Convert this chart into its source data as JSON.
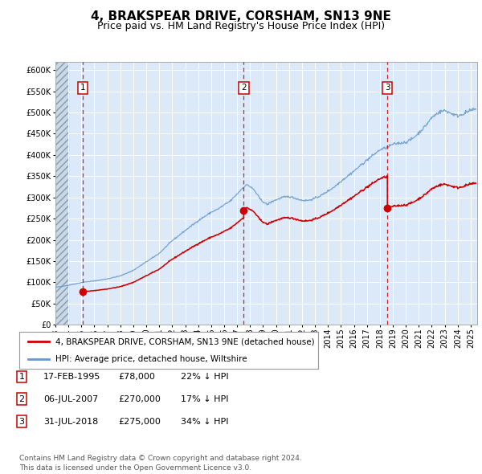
{
  "title": "4, BRAKSPEAR DRIVE, CORSHAM, SN13 9NE",
  "subtitle": "Price paid vs. HM Land Registry's House Price Index (HPI)",
  "legend_label_red": "4, BRAKSPEAR DRIVE, CORSHAM, SN13 9NE (detached house)",
  "legend_label_blue": "HPI: Average price, detached house, Wiltshire",
  "footer_line1": "Contains HM Land Registry data © Crown copyright and database right 2024.",
  "footer_line2": "This data is licensed under the Open Government Licence v3.0.",
  "transactions": [
    {
      "num": 1,
      "date": "17-FEB-1995",
      "price": 78000,
      "hpi_diff": "22% ↓ HPI"
    },
    {
      "num": 2,
      "date": "06-JUL-2007",
      "price": 270000,
      "hpi_diff": "17% ↓ HPI"
    },
    {
      "num": 3,
      "date": "31-JUL-2018",
      "price": 275000,
      "hpi_diff": "34% ↓ HPI"
    }
  ],
  "transaction_dates_decimal": [
    1995.12,
    2007.51,
    2018.58
  ],
  "transaction_prices": [
    78000,
    270000,
    275000
  ],
  "ylim": [
    0,
    620000
  ],
  "yticks": [
    0,
    50000,
    100000,
    150000,
    200000,
    250000,
    300000,
    350000,
    400000,
    450000,
    500000,
    550000,
    600000
  ],
  "plot_bg_color": "#dce9f8",
  "grid_color": "#ffffff",
  "red_line_color": "#cc0000",
  "blue_line_color": "#6699cc",
  "vline_color": "#cc0000",
  "marker_color": "#cc0000",
  "title_fontsize": 11,
  "subtitle_fontsize": 9,
  "tick_fontsize": 7,
  "legend_fontsize": 7.5,
  "table_fontsize": 8,
  "footer_fontsize": 6.5,
  "xlim_start": 1993.0,
  "xlim_end": 2025.5,
  "x_years": [
    1993,
    1994,
    1995,
    1996,
    1997,
    1998,
    1999,
    2000,
    2001,
    2002,
    2003,
    2004,
    2005,
    2006,
    2007,
    2008,
    2009,
    2010,
    2011,
    2012,
    2013,
    2014,
    2015,
    2016,
    2017,
    2018,
    2019,
    2020,
    2021,
    2022,
    2023,
    2024,
    2025
  ]
}
